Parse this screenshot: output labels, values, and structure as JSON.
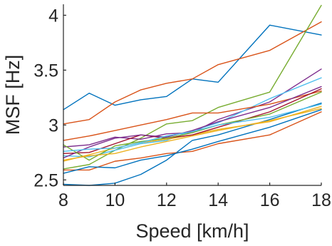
{
  "chart_data": {
    "type": "line",
    "title": "",
    "xlabel": "Speed [km/h]",
    "ylabel": "MSF [Hz]",
    "xlim": [
      8,
      18
    ],
    "ylim": [
      2.45,
      4.1
    ],
    "xticks": [
      8,
      10,
      12,
      14,
      16,
      18
    ],
    "yticks": [
      2.5,
      3,
      3.5,
      4
    ],
    "xtick_labels": [
      "8",
      "10",
      "12",
      "14",
      "16",
      "18"
    ],
    "ytick_labels": [
      "2.5",
      "3",
      "3.5",
      "4"
    ],
    "grid": false,
    "legend": "none",
    "x": [
      8,
      9,
      10,
      11,
      12,
      13,
      14,
      16,
      18
    ],
    "series": [
      {
        "color": "#0072BD",
        "values": [
          3.14,
          3.29,
          3.18,
          3.23,
          3.26,
          3.42,
          3.39,
          3.91,
          3.82
        ]
      },
      {
        "color": "#D95319",
        "values": [
          3.01,
          3.05,
          3.21,
          3.32,
          3.38,
          3.42,
          3.55,
          3.68,
          3.94
        ]
      },
      {
        "color": "#77AC30",
        "values": [
          2.6,
          2.64,
          2.77,
          2.88,
          3.01,
          3.04,
          3.16,
          3.3,
          4.09
        ]
      },
      {
        "color": "#7E2F8E",
        "values": [
          2.8,
          2.82,
          2.89,
          2.87,
          2.92,
          2.93,
          3.05,
          3.21,
          3.51
        ]
      },
      {
        "color": "#4DBEEE",
        "values": [
          2.72,
          2.71,
          2.77,
          2.83,
          2.86,
          2.95,
          3.02,
          3.24,
          3.43
        ]
      },
      {
        "color": "#D95319",
        "values": [
          2.86,
          2.9,
          2.95,
          3.0,
          3.05,
          3.11,
          3.11,
          3.19,
          3.31
        ]
      },
      {
        "color": "#0072BD",
        "values": [
          2.46,
          2.45,
          2.47,
          2.55,
          2.68,
          2.86,
          2.91,
          3.05,
          3.2
        ]
      },
      {
        "color": "#D95319",
        "values": [
          2.59,
          2.59,
          2.67,
          2.7,
          2.74,
          2.76,
          2.83,
          2.91,
          3.12
        ]
      },
      {
        "color": "#EDB120",
        "values": [
          2.67,
          2.73,
          2.79,
          2.84,
          2.87,
          2.91,
          2.96,
          3.03,
          3.17
        ]
      },
      {
        "color": "#0072BD",
        "values": [
          2.56,
          2.62,
          2.61,
          2.68,
          2.72,
          2.78,
          2.85,
          2.98,
          3.14
        ]
      },
      {
        "color": "#A2142F",
        "values": [
          2.74,
          2.75,
          2.83,
          2.91,
          2.88,
          2.91,
          2.98,
          3.12,
          3.33
        ]
      },
      {
        "color": "#7E2F8E",
        "values": [
          2.7,
          2.8,
          2.88,
          2.91,
          2.89,
          2.95,
          3.03,
          3.16,
          3.35
        ]
      },
      {
        "color": "#77AC30",
        "values": [
          2.82,
          2.68,
          2.81,
          2.85,
          2.88,
          2.93,
          3.0,
          3.1,
          3.3
        ]
      },
      {
        "color": "#4DBEEE",
        "values": [
          2.76,
          2.78,
          2.79,
          2.84,
          2.9,
          2.94,
          3.0,
          3.07,
          3.19
        ]
      },
      {
        "color": "#EDB120",
        "values": [
          2.68,
          2.72,
          2.74,
          2.8,
          2.85,
          2.9,
          2.95,
          3.04,
          3.15
        ]
      }
    ]
  }
}
